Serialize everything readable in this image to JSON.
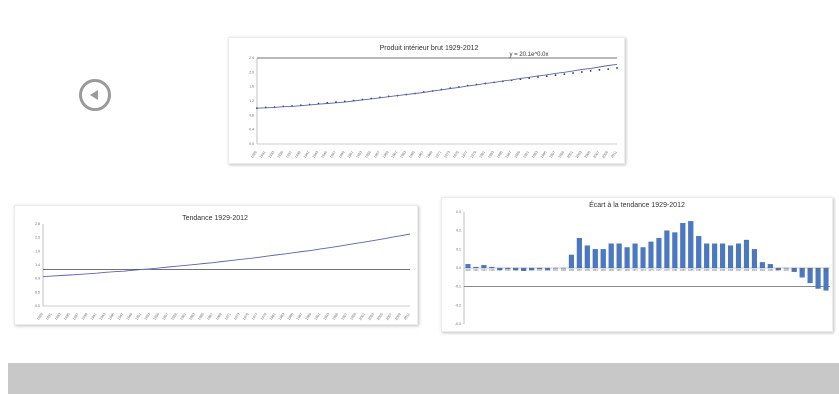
{
  "nav": {
    "prev_icon": "circle-left-arrow-icon"
  },
  "chart_data": [
    {
      "type": "line",
      "title": "Produit intérieur brut 1929-2012",
      "annotation": "y = 20.1e^0.0x",
      "x": [
        "1929",
        "1931",
        "1933",
        "1935",
        "1937",
        "1939",
        "1941",
        "1943",
        "1945",
        "1947",
        "1949",
        "1951",
        "1953",
        "1955",
        "1957",
        "1959",
        "1961",
        "1963",
        "1965",
        "1967",
        "1969",
        "1971",
        "1973",
        "1975",
        "1977",
        "1979",
        "1981",
        "1983",
        "1985",
        "1987",
        "1989",
        "1991",
        "1993",
        "1995",
        "1997",
        "1999",
        "2001",
        "2003",
        "2005",
        "2007",
        "2009",
        "2011"
      ],
      "series": [
        {
          "values": [
            1.0,
            1.02,
            1.03,
            1.05,
            1.06,
            1.08,
            1.1,
            1.13,
            1.15,
            1.17,
            1.19,
            1.21,
            1.24,
            1.27,
            1.3,
            1.33,
            1.35,
            1.38,
            1.41,
            1.45,
            1.48,
            1.52,
            1.56,
            1.59,
            1.63,
            1.66,
            1.69,
            1.72,
            1.75,
            1.78,
            1.81,
            1.84,
            1.87,
            1.89,
            1.92,
            1.95,
            1.98,
            2.01,
            2.04,
            2.07,
            2.09,
            2.12
          ]
        },
        {
          "values": [
            1.0,
            1.01,
            1.02,
            1.04,
            1.05,
            1.07,
            1.09,
            1.11,
            1.13,
            1.15,
            1.17,
            1.2,
            1.23,
            1.26,
            1.29,
            1.32,
            1.35,
            1.38,
            1.41,
            1.44,
            1.48,
            1.51,
            1.55,
            1.58,
            1.62,
            1.65,
            1.69,
            1.72,
            1.76,
            1.79,
            1.83,
            1.86,
            1.9,
            1.93,
            1.97,
            2.0,
            2.04,
            2.08,
            2.11,
            2.15,
            2.19,
            2.22
          ]
        }
      ],
      "ylim": [
        0.0,
        2.4
      ],
      "refline": 2.4
    },
    {
      "type": "line",
      "title": "Tendance 1929-2012",
      "x": [
        "1929",
        "1931",
        "1933",
        "1935",
        "1937",
        "1939",
        "1941",
        "1943",
        "1945",
        "1947",
        "1949",
        "1951",
        "1953",
        "1955",
        "1957",
        "1959",
        "1961",
        "1963",
        "1965",
        "1967",
        "1969",
        "1971",
        "1973",
        "1975",
        "1977",
        "1979",
        "1981",
        "1983",
        "1985",
        "1987",
        "1989",
        "1991",
        "1993",
        "1995",
        "1997",
        "1999",
        "2001",
        "2003",
        "2005",
        "2007",
        "2009",
        "2011"
      ],
      "series": [
        {
          "values": [
            1.0,
            1.02,
            1.04,
            1.06,
            1.08,
            1.1,
            1.12,
            1.15,
            1.17,
            1.19,
            1.22,
            1.25,
            1.27,
            1.3,
            1.33,
            1.36,
            1.39,
            1.42,
            1.45,
            1.48,
            1.52,
            1.55,
            1.59,
            1.62,
            1.66,
            1.7,
            1.74,
            1.78,
            1.82,
            1.86,
            1.9,
            1.95,
            1.99,
            2.04,
            2.09,
            2.14,
            2.19,
            2.24,
            2.29,
            2.35,
            2.4,
            2.46
          ]
        }
      ],
      "ylim": [
        0.0,
        2.8
      ],
      "refline": 1.25
    },
    {
      "type": "bar",
      "title": "Écart à la tendance 1929-2012",
      "categories": [
        "1929",
        "1931",
        "1933",
        "1935",
        "1937",
        "1939",
        "1941",
        "1943",
        "1945",
        "1947",
        "1949",
        "1951",
        "1953",
        "1955",
        "1957",
        "1959",
        "1961",
        "1963",
        "1965",
        "1967",
        "1969",
        "1971",
        "1973",
        "1975",
        "1977",
        "1979",
        "1981",
        "1983",
        "1985",
        "1987",
        "1989",
        "1991",
        "1993",
        "1995",
        "1997",
        "1999",
        "2001",
        "2003",
        "2005",
        "2007",
        "2009",
        "2011",
        "2013",
        "2015",
        "2017",
        "2019"
      ],
      "values": [
        0.02,
        0.005,
        0.015,
        0.005,
        -0.01,
        -0.005,
        -0.01,
        -0.015,
        -0.01,
        -0.005,
        -0.01,
        0.0,
        0.0,
        0.07,
        0.16,
        0.12,
        0.1,
        0.1,
        0.13,
        0.13,
        0.11,
        0.13,
        0.11,
        0.14,
        0.16,
        0.2,
        0.19,
        0.24,
        0.25,
        0.17,
        0.13,
        0.13,
        0.13,
        0.12,
        0.13,
        0.15,
        0.1,
        0.03,
        0.02,
        -0.01,
        0.0,
        -0.02,
        -0.05,
        -0.08,
        -0.11,
        -0.12
      ],
      "ylim": [
        -0.3,
        0.3
      ]
    }
  ]
}
